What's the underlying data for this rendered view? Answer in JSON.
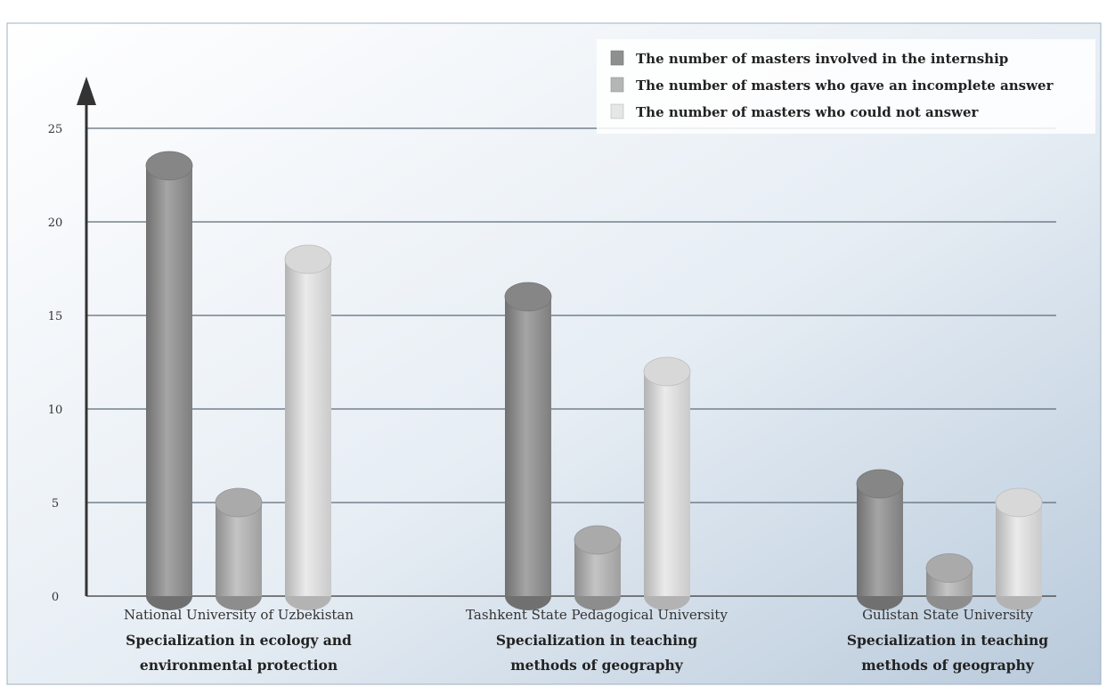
{
  "chart_data": {
    "type": "bar",
    "title": "",
    "xlabel": "",
    "ylabel": "",
    "ylim": [
      0,
      25
    ],
    "yticks": [
      0,
      5,
      10,
      15,
      20,
      25
    ],
    "grid": true,
    "legend_position": "top-right",
    "categories": [
      {
        "university": "National University of Uzbekistan",
        "specialization_line1": "Specialization in ecology and",
        "specialization_line2": "environmental protection"
      },
      {
        "university": "Tashkent State Pedagogical University",
        "specialization_line1": "Specialization in teaching",
        "specialization_line2": "methods of geography"
      },
      {
        "university": "Gulistan State University",
        "specialization_line1": "Specialization in teaching",
        "specialization_line2": "methods of geography"
      }
    ],
    "series": [
      {
        "name": "The number of masters involved in the internship",
        "values": [
          23,
          16,
          6
        ],
        "color": "#8f8f8f"
      },
      {
        "name": "The number of masters who gave an incomplete answer",
        "values": [
          5,
          3,
          1.5
        ],
        "color": "#b5b5b5"
      },
      {
        "name": "The number of masters who could not answer",
        "values": [
          18,
          12,
          5
        ],
        "color": "#e6e6e6"
      }
    ]
  }
}
